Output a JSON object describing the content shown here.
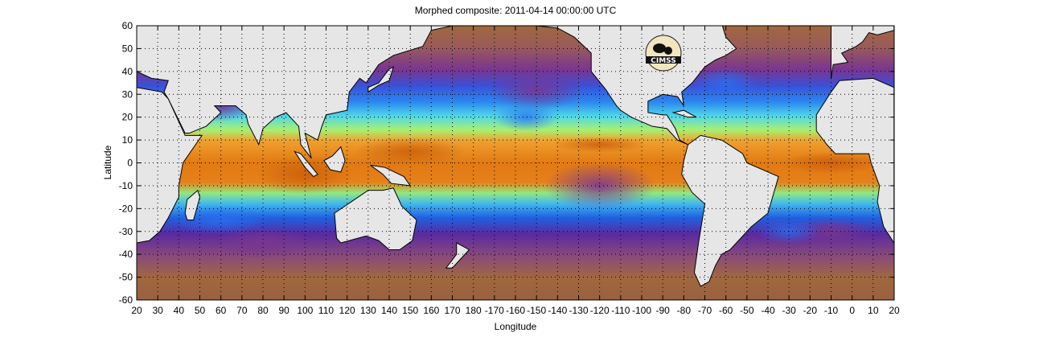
{
  "title": "Morphed composite: 2011-04-14 00:00:00 UTC",
  "xlabel": "Longitude",
  "ylabel": "Latitude",
  "xticks": [
    "20",
    "30",
    "40",
    "50",
    "60",
    "70",
    "80",
    "90",
    "100",
    "110",
    "120",
    "130",
    "140",
    "150",
    "160",
    "170",
    "180",
    "-170",
    "-160",
    "-150",
    "-140",
    "-130",
    "-120",
    "-110",
    "-100",
    "-90",
    "-80",
    "-70",
    "-60",
    "-50",
    "-40",
    "-30",
    "-20",
    "-10",
    "0",
    "10",
    "20"
  ],
  "yticks": [
    "60",
    "50",
    "40",
    "30",
    "20",
    "10",
    "0",
    "-10",
    "-20",
    "-30",
    "-40",
    "-50",
    "-60"
  ],
  "logo": "CIMSS",
  "colors": {
    "land": "#e6e6e6",
    "coast": "#000000",
    "dry": "#a0683e",
    "moist": "#e07a12"
  }
}
